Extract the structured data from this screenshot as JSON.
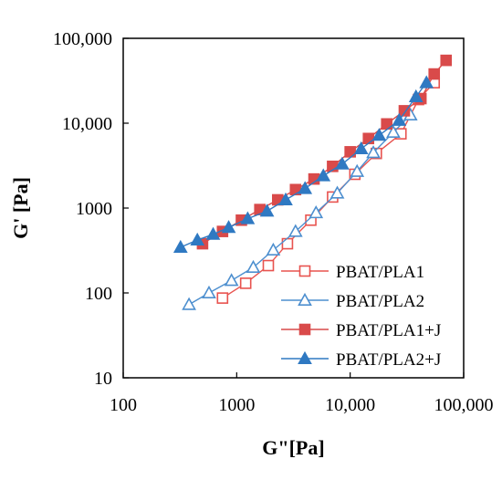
{
  "chart_data": {
    "type": "scatter",
    "xlabel": "G\"[Pa]",
    "ylabel": "G' [Pa]",
    "xscale": "log",
    "yscale": "log",
    "xlim": [
      100,
      100000
    ],
    "ylim": [
      10,
      100000
    ],
    "x_tick_labels": [
      "100",
      "1000",
      "10,000",
      "100,000"
    ],
    "y_tick_labels": [
      "10",
      "100",
      "1000",
      "10,000",
      "100,000"
    ],
    "x_ticks": [
      100,
      1000,
      10000,
      100000
    ],
    "y_ticks": [
      10,
      100,
      1000,
      10000,
      100000
    ],
    "grid": false,
    "legend_position": "lower-right",
    "series": [
      {
        "name": "PBAT/PLA1",
        "color": "#e8534f",
        "marker": "square-open",
        "x": [
          750,
          1200,
          1900,
          2800,
          4500,
          7000,
          11000,
          17000,
          28000,
          40000,
          55000
        ],
        "y": [
          87,
          130,
          210,
          380,
          720,
          1350,
          2500,
          4400,
          7500,
          19000,
          30000
        ]
      },
      {
        "name": "PBAT/PLA2",
        "color": "#4d8fcf",
        "marker": "triangle-open",
        "x": [
          380,
          570,
          900,
          1400,
          2100,
          3300,
          5000,
          7700,
          11500,
          16000,
          24000,
          34000
        ],
        "y": [
          73,
          100,
          140,
          200,
          320,
          530,
          880,
          1500,
          2700,
          4500,
          7800,
          12500
        ]
      },
      {
        "name": "PBAT/PLA1+J",
        "color": "#d94a4a",
        "marker": "square-filled",
        "x": [
          500,
          750,
          1100,
          1600,
          2300,
          3300,
          4800,
          7000,
          10000,
          14500,
          21000,
          30000,
          42000,
          55000,
          70000
        ],
        "y": [
          380,
          530,
          720,
          960,
          1250,
          1650,
          2200,
          3100,
          4600,
          6600,
          9800,
          14000,
          19500,
          38000,
          55000
        ]
      },
      {
        "name": "PBAT/PLA2+J",
        "color": "#2f79c2",
        "marker": "triangle-filled",
        "x": [
          320,
          450,
          620,
          850,
          1250,
          1850,
          2700,
          4000,
          5800,
          8500,
          12500,
          18000,
          27000,
          38000,
          47000
        ],
        "y": [
          345,
          420,
          490,
          590,
          750,
          920,
          1250,
          1700,
          2400,
          3300,
          5000,
          7200,
          10800,
          20500,
          30000
        ]
      }
    ]
  }
}
